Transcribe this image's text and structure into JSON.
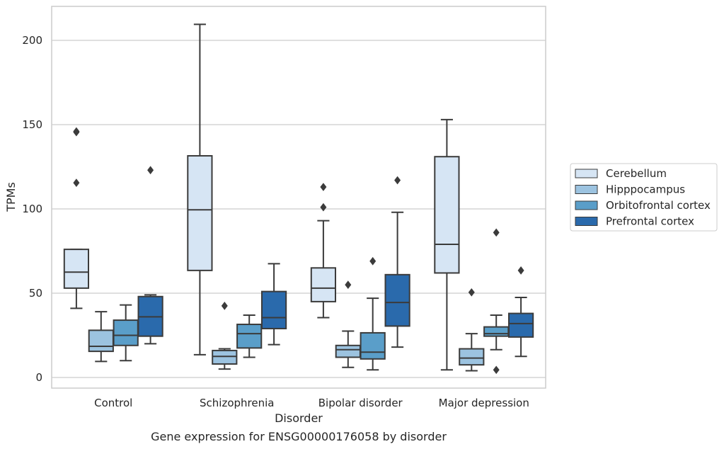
{
  "chart_data": {
    "type": "boxplot",
    "title": "Gene expression for ENSG00000176058 by disorder",
    "xlabel": "Disorder",
    "ylabel": "TPMs",
    "ylim": [
      -6,
      220
    ],
    "yticks": [
      0,
      50,
      100,
      150,
      200
    ],
    "grid": "horizontal",
    "legend_position": "right",
    "categories": [
      "Control",
      "Schizophrenia",
      "Bipolar disorder",
      "Major depression"
    ],
    "series": [
      {
        "name": "Cerebellum",
        "color": "#d6e5f4",
        "boxes": [
          {
            "whislo": 41,
            "q1": 53,
            "med": 62.5,
            "q3": 76,
            "whishi": 76,
            "fliers": [
              115.5,
              145.5,
              146
            ]
          },
          {
            "whislo": 13.5,
            "q1": 63.5,
            "med": 99.5,
            "q3": 131.5,
            "whishi": 209.5,
            "fliers": []
          },
          {
            "whislo": 35.5,
            "q1": 45,
            "med": 53,
            "q3": 65,
            "whishi": 93,
            "fliers": [
              101,
              113
            ]
          },
          {
            "whislo": 4.5,
            "q1": 62,
            "med": 79,
            "q3": 131,
            "whishi": 153,
            "fliers": []
          }
        ]
      },
      {
        "name": "Hipppocampus",
        "color": "#9cc3e0",
        "boxes": [
          {
            "whislo": 9.5,
            "q1": 15.5,
            "med": 18.5,
            "q3": 28,
            "whishi": 39,
            "fliers": []
          },
          {
            "whislo": 5,
            "q1": 8,
            "med": 12.5,
            "q3": 16,
            "whishi": 17,
            "fliers": [
              42.5
            ]
          },
          {
            "whislo": 6,
            "q1": 12,
            "med": 16.5,
            "q3": 19,
            "whishi": 27.5,
            "fliers": [
              55
            ]
          },
          {
            "whislo": 4,
            "q1": 7.5,
            "med": 11.5,
            "q3": 17,
            "whishi": 26,
            "fliers": [
              50.5
            ]
          }
        ]
      },
      {
        "name": "Orbitofrontal cortex",
        "color": "#5a9ec9",
        "boxes": [
          {
            "whislo": 10,
            "q1": 19,
            "med": 25,
            "q3": 34,
            "whishi": 43,
            "fliers": []
          },
          {
            "whislo": 12,
            "q1": 17.5,
            "med": 26,
            "q3": 31.5,
            "whishi": 37,
            "fliers": []
          },
          {
            "whislo": 4.5,
            "q1": 11,
            "med": 15,
            "q3": 26.5,
            "whishi": 47,
            "fliers": [
              69
            ]
          },
          {
            "whislo": 16.5,
            "q1": 24.5,
            "med": 26,
            "q3": 30,
            "whishi": 37,
            "fliers": [
              4.5,
              86
            ]
          }
        ]
      },
      {
        "name": "Prefrontal cortex",
        "color": "#2a6aac",
        "boxes": [
          {
            "whislo": 20,
            "q1": 24.5,
            "med": 36,
            "q3": 48,
            "whishi": 49,
            "fliers": [
              123
            ]
          },
          {
            "whislo": 19.5,
            "q1": 29,
            "med": 35.5,
            "q3": 51,
            "whishi": 67.5,
            "fliers": []
          },
          {
            "whislo": 18,
            "q1": 30.5,
            "med": 44.5,
            "q3": 61,
            "whishi": 98,
            "fliers": [
              117
            ]
          },
          {
            "whislo": 12.5,
            "q1": 24,
            "med": 32,
            "q3": 38,
            "whishi": 47.5,
            "fliers": [
              63.5
            ]
          }
        ]
      }
    ]
  }
}
